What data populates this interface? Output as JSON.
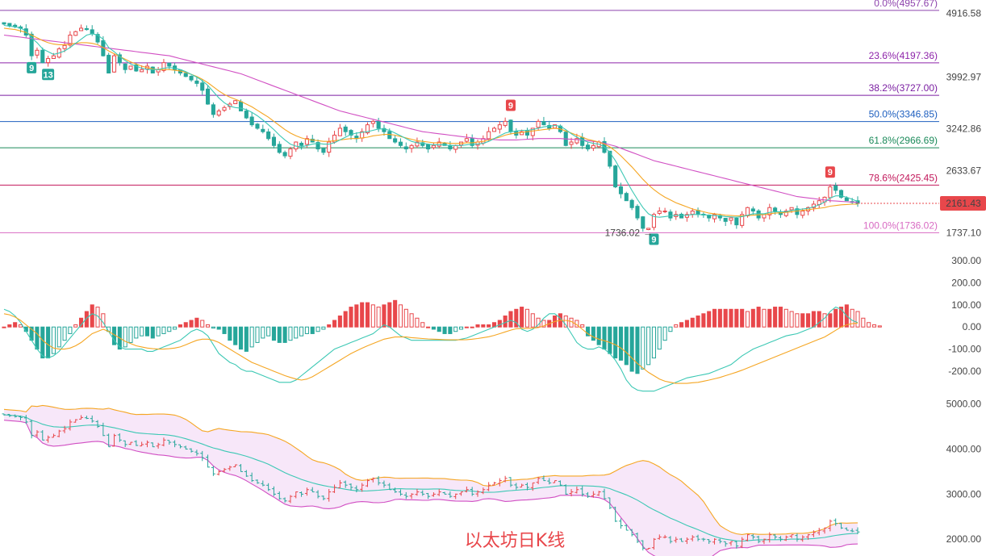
{
  "title": "以太坊日K线",
  "chart_data": [
    {
      "type": "candlestick",
      "panel": "price",
      "ylim": [
        1600,
        5050
      ],
      "y_ticks": [
        "4916.58",
        "3992.97",
        "3242.86",
        "2633.67",
        "1737.10"
      ],
      "current_price": "2161.43",
      "low_marker": "1736.02",
      "fibonacci": [
        {
          "label": "0.0%(4957.67)",
          "value": 4957.67,
          "color": "#8e44ad"
        },
        {
          "label": "23.6%(4197.36)",
          "value": 4197.36,
          "color": "#8e24aa"
        },
        {
          "label": "38.2%(3727.00)",
          "value": 3727.0,
          "color": "#7b1fa2"
        },
        {
          "label": "50.0%(3346.85)",
          "value": 3346.85,
          "color": "#1e5fbf"
        },
        {
          "label": "61.8%(2966.69)",
          "value": 2966.69,
          "color": "#1b8a5a"
        },
        {
          "label": "78.6%(2425.45)",
          "value": 2425.45,
          "color": "#c2185b"
        },
        {
          "label": "100.0%(1736.02)",
          "value": 1736.02,
          "color": "#d86bc3"
        }
      ],
      "signals": [
        {
          "label": "9",
          "type": "buy",
          "index": 5
        },
        {
          "label": "13",
          "type": "buy",
          "index": 8
        },
        {
          "label": "9",
          "type": "sell",
          "index": 92
        },
        {
          "label": "9",
          "type": "buy",
          "index": 118
        },
        {
          "label": "9",
          "type": "sell",
          "index": 150
        }
      ],
      "close": [
        4760,
        4740,
        4720,
        4700,
        4600,
        4300,
        4380,
        4200,
        4260,
        4300,
        4400,
        4450,
        4600,
        4650,
        4700,
        4680,
        4620,
        4500,
        4300,
        4050,
        4300,
        4200,
        4100,
        4150,
        4080,
        4100,
        4150,
        4050,
        4100,
        4200,
        4150,
        4100,
        4050,
        4000,
        3950,
        3900,
        3800,
        3600,
        3450,
        3500,
        3550,
        3600,
        3650,
        3500,
        3400,
        3300,
        3250,
        3200,
        3100,
        3000,
        2900,
        2850,
        2950,
        3050,
        3000,
        3100,
        3050,
        2950,
        2900,
        3050,
        3150,
        3250,
        3200,
        3150,
        3100,
        3200,
        3300,
        3350,
        3250,
        3200,
        3100,
        3050,
        3000,
        2950,
        3000,
        3050,
        3000,
        2950,
        3000,
        3050,
        3000,
        2950,
        3000,
        3050,
        3100,
        3000,
        3050,
        3100,
        3200,
        3250,
        3300,
        3350,
        3200,
        3150,
        3200,
        3150,
        3250,
        3350,
        3300,
        3250,
        3300,
        3200,
        3000,
        3050,
        3100,
        3000,
        2950,
        3000,
        3050,
        2900,
        2700,
        2400,
        2300,
        2200,
        2100,
        1950,
        1800,
        1800,
        2000,
        2050,
        2050,
        1950,
        2000,
        1950,
        2000,
        2050,
        2000,
        2000,
        1950,
        2000,
        1950,
        1900,
        1950,
        1850,
        2000,
        2100,
        2050,
        1950,
        2000,
        2100,
        2050,
        2000,
        2050,
        2100,
        2000,
        2050,
        2100,
        2150,
        2200,
        2250,
        2400,
        2350,
        2250,
        2200,
        2180,
        2161.43
      ],
      "ma_slow": [
        4600,
        4590,
        4580,
        4570,
        4560,
        4550,
        4540,
        4530,
        4520,
        4510,
        4500,
        4490,
        4480,
        4470,
        4460,
        4450,
        4440,
        4430,
        4420,
        4410,
        4400,
        4390,
        4380,
        4370,
        4360,
        4350,
        4340,
        4330,
        4320,
        4310,
        4300,
        4280,
        4260,
        4240,
        4220,
        4200,
        4180,
        4160,
        4140,
        4120,
        4100,
        4080,
        4060,
        4040,
        4010,
        3980,
        3950,
        3920,
        3890,
        3860,
        3830,
        3800,
        3770,
        3740,
        3710,
        3680,
        3650,
        3620,
        3590,
        3560,
        3530,
        3500,
        3480,
        3460,
        3440,
        3420,
        3400,
        3380,
        3360,
        3340,
        3320,
        3300,
        3280,
        3260,
        3240,
        3220,
        3200,
        3190,
        3180,
        3170,
        3160,
        3150,
        3140,
        3130,
        3120,
        3110,
        3100,
        3095,
        3090,
        3085,
        3080,
        3080,
        3080,
        3080,
        3085,
        3090,
        3095,
        3100,
        3100,
        3100,
        3100,
        3100,
        3095,
        3090,
        3085,
        3080,
        3070,
        3060,
        3050,
        3030,
        3010,
        2990,
        2960,
        2930,
        2900,
        2870,
        2840,
        2810,
        2780,
        2760,
        2740,
        2720,
        2700,
        2680,
        2660,
        2640,
        2620,
        2600,
        2580,
        2560,
        2540,
        2520,
        2500,
        2480,
        2460,
        2440,
        2420,
        2400,
        2380,
        2360,
        2340,
        2320,
        2300,
        2280,
        2260,
        2250,
        2240,
        2230,
        2220,
        2210,
        2200,
        2195,
        2190,
        2185,
        2180,
        2175
      ],
      "ma_mid": [
        4700,
        4690,
        4680,
        4660,
        4640,
        4600,
        4560,
        4520,
        4490,
        4470,
        4460,
        4460,
        4470,
        4480,
        4490,
        4490,
        4480,
        4460,
        4420,
        4370,
        4330,
        4290,
        4250,
        4210,
        4180,
        4150,
        4130,
        4110,
        4100,
        4100,
        4100,
        4090,
        4080,
        4060,
        4030,
        4000,
        3960,
        3910,
        3850,
        3790,
        3740,
        3700,
        3670,
        3640,
        3600,
        3560,
        3510,
        3460,
        3410,
        3350,
        3290,
        3230,
        3180,
        3140,
        3110,
        3090,
        3080,
        3070,
        3060,
        3060,
        3070,
        3080,
        3090,
        3100,
        3100,
        3110,
        3120,
        3140,
        3150,
        3160,
        3160,
        3150,
        3130,
        3110,
        3090,
        3070,
        3060,
        3050,
        3040,
        3040,
        3040,
        3030,
        3030,
        3030,
        3040,
        3040,
        3050,
        3060,
        3080,
        3100,
        3120,
        3150,
        3170,
        3180,
        3190,
        3200,
        3210,
        3220,
        3230,
        3240,
        3250,
        3240,
        3210,
        3180,
        3150,
        3120,
        3090,
        3070,
        3050,
        3020,
        2980,
        2920,
        2850,
        2770,
        2690,
        2600,
        2510,
        2430,
        2360,
        2300,
        2250,
        2210,
        2170,
        2140,
        2110,
        2080,
        2060,
        2040,
        2020,
        2010,
        2000,
        1990,
        1985,
        1980,
        1980,
        1985,
        1990,
        1995,
        2000,
        2010,
        2020,
        2025,
        2030,
        2040,
        2050,
        2060,
        2070,
        2080,
        2090,
        2100,
        2120,
        2130,
        2140,
        2145,
        2150,
        2150
      ],
      "ma_fast": [
        4740,
        4730,
        4720,
        4700,
        4660,
        4560,
        4490,
        4400,
        4360,
        4320,
        4340,
        4370,
        4420,
        4480,
        4540,
        4600,
        4620,
        4600,
        4540,
        4420,
        4360,
        4290,
        4230,
        4180,
        4150,
        4120,
        4100,
        4100,
        4100,
        4120,
        4130,
        4120,
        4100,
        4070,
        4030,
        3990,
        3940,
        3870,
        3780,
        3690,
        3620,
        3570,
        3550,
        3540,
        3520,
        3480,
        3430,
        3370,
        3300,
        3230,
        3150,
        3080,
        3020,
        2990,
        2980,
        3000,
        3020,
        3030,
        3020,
        3020,
        3040,
        3080,
        3120,
        3160,
        3180,
        3190,
        3200,
        3220,
        3240,
        3240,
        3220,
        3180,
        3140,
        3100,
        3060,
        3040,
        3030,
        3020,
        3010,
        3010,
        3010,
        3000,
        3000,
        3000,
        3010,
        3020,
        3020,
        3030,
        3060,
        3100,
        3140,
        3180,
        3200,
        3210,
        3220,
        3220,
        3230,
        3250,
        3270,
        3280,
        3290,
        3280,
        3230,
        3170,
        3120,
        3080,
        3050,
        3030,
        3020,
        2980,
        2900,
        2780,
        2640,
        2490,
        2350,
        2220,
        2100,
        2010,
        1970,
        1960,
        1970,
        1980,
        1990,
        1990,
        1990,
        2000,
        2000,
        1995,
        1990,
        1985,
        1980,
        1970,
        1965,
        1960,
        1970,
        1990,
        2010,
        2010,
        2010,
        2030,
        2040,
        2040,
        2040,
        2060,
        2070,
        2080,
        2090,
        2110,
        2140,
        2180,
        2240,
        2270,
        2270,
        2250,
        2220,
        2190
      ]
    },
    {
      "type": "macd",
      "panel": "macd",
      "ylim": [
        -280,
        340
      ],
      "y_ticks": [
        "300.00",
        "200.00",
        "100.00",
        "0.00",
        "-100.00",
        "-200.00"
      ],
      "histogram": [
        0,
        10,
        20,
        10,
        -20,
        -60,
        -100,
        -140,
        -140,
        -120,
        -90,
        -60,
        -30,
        10,
        40,
        70,
        100,
        90,
        60,
        -20,
        -80,
        -100,
        -90,
        -70,
        -50,
        -40,
        -40,
        -50,
        -40,
        -30,
        -20,
        -10,
        10,
        20,
        30,
        40,
        30,
        10,
        -5,
        -10,
        -30,
        -60,
        -80,
        -100,
        -110,
        -90,
        -70,
        -50,
        -40,
        -60,
        -70,
        -70,
        -60,
        -50,
        -40,
        -30,
        -30,
        -20,
        -10,
        10,
        30,
        50,
        70,
        90,
        100,
        110,
        110,
        100,
        90,
        100,
        110,
        120,
        100,
        80,
        60,
        40,
        20,
        0,
        -10,
        -20,
        -30,
        -30,
        -20,
        -10,
        0,
        0,
        10,
        10,
        10,
        20,
        30,
        50,
        70,
        80,
        90,
        80,
        60,
        40,
        30,
        30,
        50,
        60,
        50,
        40,
        30,
        10,
        -40,
        -60,
        -80,
        -100,
        -120,
        -140,
        -150,
        -170,
        -200,
        -210,
        -190,
        -170,
        -140,
        -100,
        -60,
        -20,
        10,
        20,
        30,
        40,
        50,
        60,
        70,
        80,
        80,
        80,
        80,
        80,
        80,
        70,
        80,
        90,
        80,
        80,
        90,
        90,
        80,
        70,
        60,
        60,
        60,
        70,
        70,
        60,
        60,
        80,
        90,
        100,
        80,
        70,
        40,
        20,
        10,
        5
      ],
      "dif": [
        80,
        70,
        50,
        20,
        -20,
        -60,
        -100,
        -130,
        -140,
        -130,
        -110,
        -80,
        -50,
        -20,
        10,
        40,
        60,
        50,
        20,
        -20,
        -60,
        -90,
        -100,
        -100,
        -100,
        -100,
        -110,
        -110,
        -100,
        -90,
        -80,
        -70,
        -60,
        -40,
        -20,
        -10,
        -20,
        -40,
        -80,
        -120,
        -140,
        -160,
        -170,
        -190,
        -200,
        -200,
        -210,
        -220,
        -230,
        -240,
        -250,
        -250,
        -250,
        -240,
        -220,
        -200,
        -180,
        -160,
        -140,
        -120,
        -100,
        -90,
        -80,
        -70,
        -60,
        -50,
        -40,
        -30,
        -10,
        10,
        0,
        -20,
        -40,
        -50,
        -60,
        -60,
        -60,
        -60,
        -60,
        -60,
        -60,
        -60,
        -60,
        -55,
        -50,
        -40,
        -30,
        -20,
        -10,
        0,
        10,
        20,
        30,
        20,
        -10,
        -20,
        -10,
        10,
        40,
        60,
        60,
        40,
        10,
        -30,
        -70,
        -90,
        -100,
        -100,
        -90,
        -100,
        -120,
        -150,
        -190,
        -240,
        -270,
        -285,
        -290,
        -290,
        -290,
        -280,
        -270,
        -260,
        -250,
        -240,
        -230,
        -225,
        -220,
        -215,
        -210,
        -200,
        -190,
        -180,
        -170,
        -150,
        -130,
        -115,
        -100,
        -90,
        -80,
        -70,
        -60,
        -50,
        -40,
        -35,
        -30,
        -20,
        -10,
        0,
        20,
        40,
        70,
        90,
        80,
        50,
        30,
        20,
        10,
        5
      ],
      "dea": [
        60,
        55,
        45,
        30,
        10,
        -10,
        -30,
        -60,
        -80,
        -95,
        -100,
        -100,
        -95,
        -85,
        -70,
        -50,
        -30,
        -20,
        -10,
        -20,
        -35,
        -50,
        -65,
        -75,
        -85,
        -90,
        -95,
        -98,
        -100,
        -100,
        -98,
        -95,
        -90,
        -80,
        -70,
        -60,
        -55,
        -55,
        -60,
        -70,
        -85,
        -100,
        -115,
        -130,
        -145,
        -160,
        -170,
        -180,
        -190,
        -200,
        -210,
        -220,
        -228,
        -235,
        -240,
        -235,
        -225,
        -210,
        -195,
        -180,
        -165,
        -150,
        -135,
        -120,
        -108,
        -96,
        -85,
        -75,
        -65,
        -55,
        -50,
        -45,
        -45,
        -45,
        -48,
        -50,
        -52,
        -54,
        -55,
        -56,
        -57,
        -58,
        -58,
        -58,
        -57,
        -55,
        -52,
        -48,
        -44,
        -38,
        -30,
        -22,
        -14,
        -8,
        -6,
        -6,
        -5,
        -3,
        5,
        15,
        25,
        30,
        30,
        25,
        10,
        -10,
        -30,
        -45,
        -55,
        -62,
        -70,
        -80,
        -95,
        -115,
        -140,
        -165,
        -185,
        -205,
        -220,
        -235,
        -245,
        -250,
        -255,
        -255,
        -255,
        -252,
        -250,
        -245,
        -240,
        -234,
        -228,
        -220,
        -212,
        -204,
        -195,
        -185,
        -175,
        -165,
        -155,
        -145,
        -135,
        -125,
        -115,
        -105,
        -95,
        -85,
        -75,
        -65,
        -55,
        -45,
        -30,
        -15,
        0,
        10,
        15,
        18,
        20,
        20,
        18
      ]
    },
    {
      "type": "bollinger",
      "panel": "boll",
      "ylim": [
        1700,
        5100
      ],
      "y_ticks": [
        "5000.00",
        "4000.00",
        "3000.00",
        "2000.00"
      ]
    }
  ]
}
